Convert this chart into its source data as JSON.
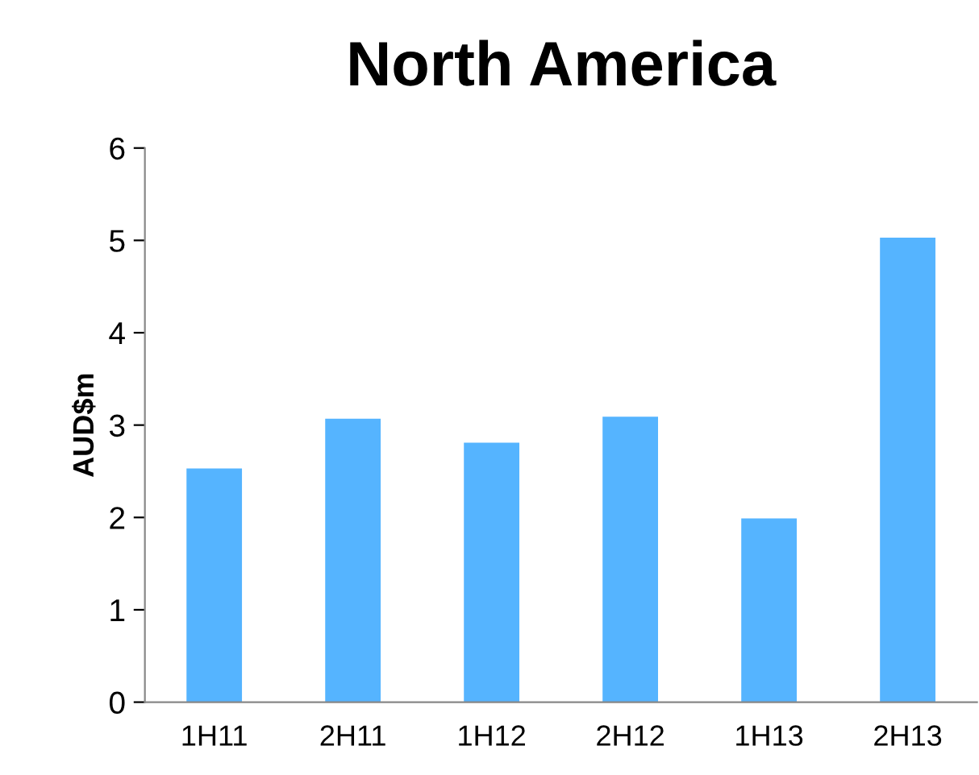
{
  "chart_data": {
    "type": "bar",
    "title": "North America",
    "ylabel": "AUD$m",
    "categories": [
      "1H11",
      "2H11",
      "1H12",
      "2H12",
      "1H13",
      "2H13"
    ],
    "values": [
      2.53,
      3.07,
      2.81,
      3.09,
      1.99,
      5.03
    ],
    "color": "#55b4ff",
    "ylim": [
      0,
      6
    ],
    "yticks": [
      0,
      1,
      2,
      3,
      4,
      5,
      6
    ],
    "grid": false,
    "legend": false
  }
}
